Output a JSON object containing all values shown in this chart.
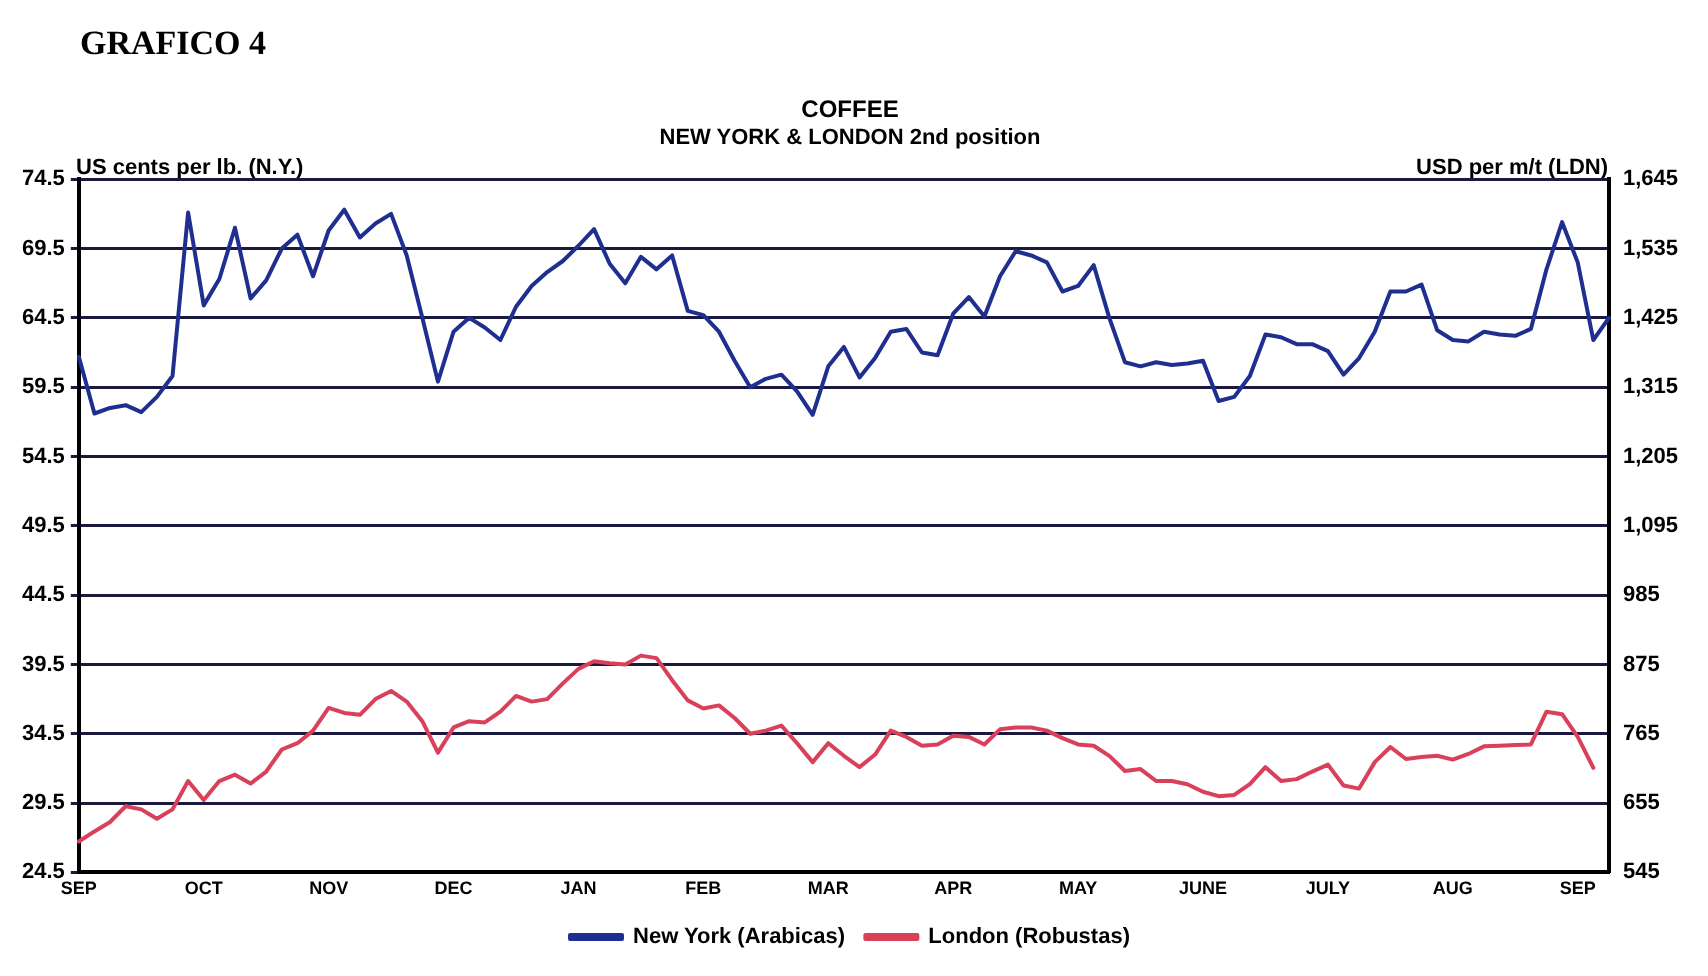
{
  "chart_data": {
    "type": "line",
    "title": "COFFEE",
    "subtitle": "NEW YORK & LONDON 2nd position",
    "ylabel": "US cents per lb. (N.Y.)",
    "y2label": "USD per m/t (LDN)",
    "annotations": [
      "GRAFICO 4"
    ],
    "categories": [
      "SEP",
      null,
      null,
      null,
      null,
      null,
      null,
      null,
      "OCT",
      null,
      null,
      null,
      null,
      null,
      null,
      null,
      "NOV",
      null,
      null,
      null,
      null,
      null,
      null,
      null,
      "DEC",
      null,
      null,
      null,
      null,
      null,
      null,
      null,
      "JAN",
      null,
      null,
      null,
      null,
      null,
      null,
      null,
      "FEB",
      null,
      null,
      null,
      null,
      null,
      null,
      null,
      "MAR",
      null,
      null,
      null,
      null,
      null,
      null,
      null,
      "APR",
      null,
      null,
      null,
      null,
      null,
      null,
      null,
      "MAY",
      null,
      null,
      null,
      null,
      null,
      null,
      null,
      "JUNE",
      null,
      null,
      null,
      null,
      null,
      null,
      null,
      "JULY",
      null,
      null,
      null,
      null,
      null,
      null,
      null,
      "AUG",
      null,
      null,
      null,
      null,
      null,
      null,
      null,
      "SEP",
      null,
      null
    ],
    "ylim": [
      24.5,
      74.5
    ],
    "yticks": [
      24.5,
      29.5,
      34.5,
      39.5,
      44.5,
      49.5,
      54.5,
      59.5,
      64.5,
      69.5,
      74.5
    ],
    "y2lim": [
      545,
      1645
    ],
    "y2ticks": [
      545,
      655,
      765,
      875,
      985,
      {
        "value": 1095,
        "label": "1,095"
      },
      {
        "value": 1205,
        "label": "1,205"
      },
      {
        "value": 1315,
        "label": "1,315"
      },
      {
        "value": 1425,
        "label": "1,425"
      },
      {
        "value": 1535,
        "label": "1,535"
      },
      {
        "value": 1645,
        "label": "1,645"
      }
    ],
    "grid": "y",
    "legend": "bottom",
    "line_style": "solid",
    "series": [
      {
        "name": "New York (Arabicas)",
        "color": "#1f2f8f",
        "values": [
          61.7,
          57.6,
          58.0,
          58.2,
          57.7,
          58.8,
          60.3,
          72.1,
          65.4,
          67.3,
          71.0,
          65.9,
          67.2,
          69.5,
          70.5,
          67.5,
          70.8,
          72.3,
          70.3,
          71.3,
          72.0,
          69.0,
          64.5,
          59.9,
          63.5,
          64.5,
          63.8,
          62.9,
          65.3,
          66.8,
          67.8,
          68.6,
          69.7,
          70.9,
          68.4,
          67.0,
          68.9,
          68.0,
          69.0,
          65.0,
          64.7,
          63.5,
          61.4,
          59.5,
          60.1,
          60.4,
          59.2,
          57.5,
          61.0,
          62.4,
          60.2,
          61.6,
          63.5,
          63.7,
          62.0,
          61.8,
          64.8,
          66.0,
          64.6,
          67.5,
          69.3,
          69.0,
          68.5,
          66.4,
          66.8,
          68.3,
          64.5,
          61.3,
          61.0,
          61.3,
          61.1,
          61.2,
          61.4,
          58.5,
          58.8,
          60.3,
          63.3,
          63.1,
          62.6,
          62.6,
          62.1,
          60.4,
          61.6,
          63.5,
          66.4,
          66.4,
          66.9,
          63.6,
          62.9,
          62.8,
          63.5,
          63.3,
          63.2,
          63.7,
          68.0,
          71.4,
          68.5,
          62.9,
          64.5
        ]
      },
      {
        "name": "London (Robustas)",
        "color": "#d9405a",
        "axis": "y2",
        "values": [
          594,
          610,
          625,
          650,
          645,
          630,
          645,
          690,
          660,
          690,
          700,
          686,
          705,
          740,
          750,
          770,
          806,
          798,
          795,
          820,
          833,
          816,
          785,
          735,
          775,
          785,
          783,
          800,
          825,
          816,
          820,
          845,
          868,
          880,
          877,
          875,
          889,
          885,
          850,
          818,
          805,
          810,
          790,
          765,
          770,
          778,
          750,
          720,
          750,
          730,
          712,
          732,
          770,
          760,
          746,
          748,
          762,
          760,
          748,
          772,
          775,
          775,
          770,
          758,
          748,
          746,
          730,
          706,
          709,
          690,
          690,
          685,
          673,
          666,
          668,
          685,
          712,
          690,
          693,
          705,
          716,
          683,
          678,
          720,
          744,
          725,
          728,
          730,
          724,
          733,
          745,
          746,
          747,
          748,
          800,
          796,
          760,
          711,
          null
        ]
      }
    ]
  }
}
